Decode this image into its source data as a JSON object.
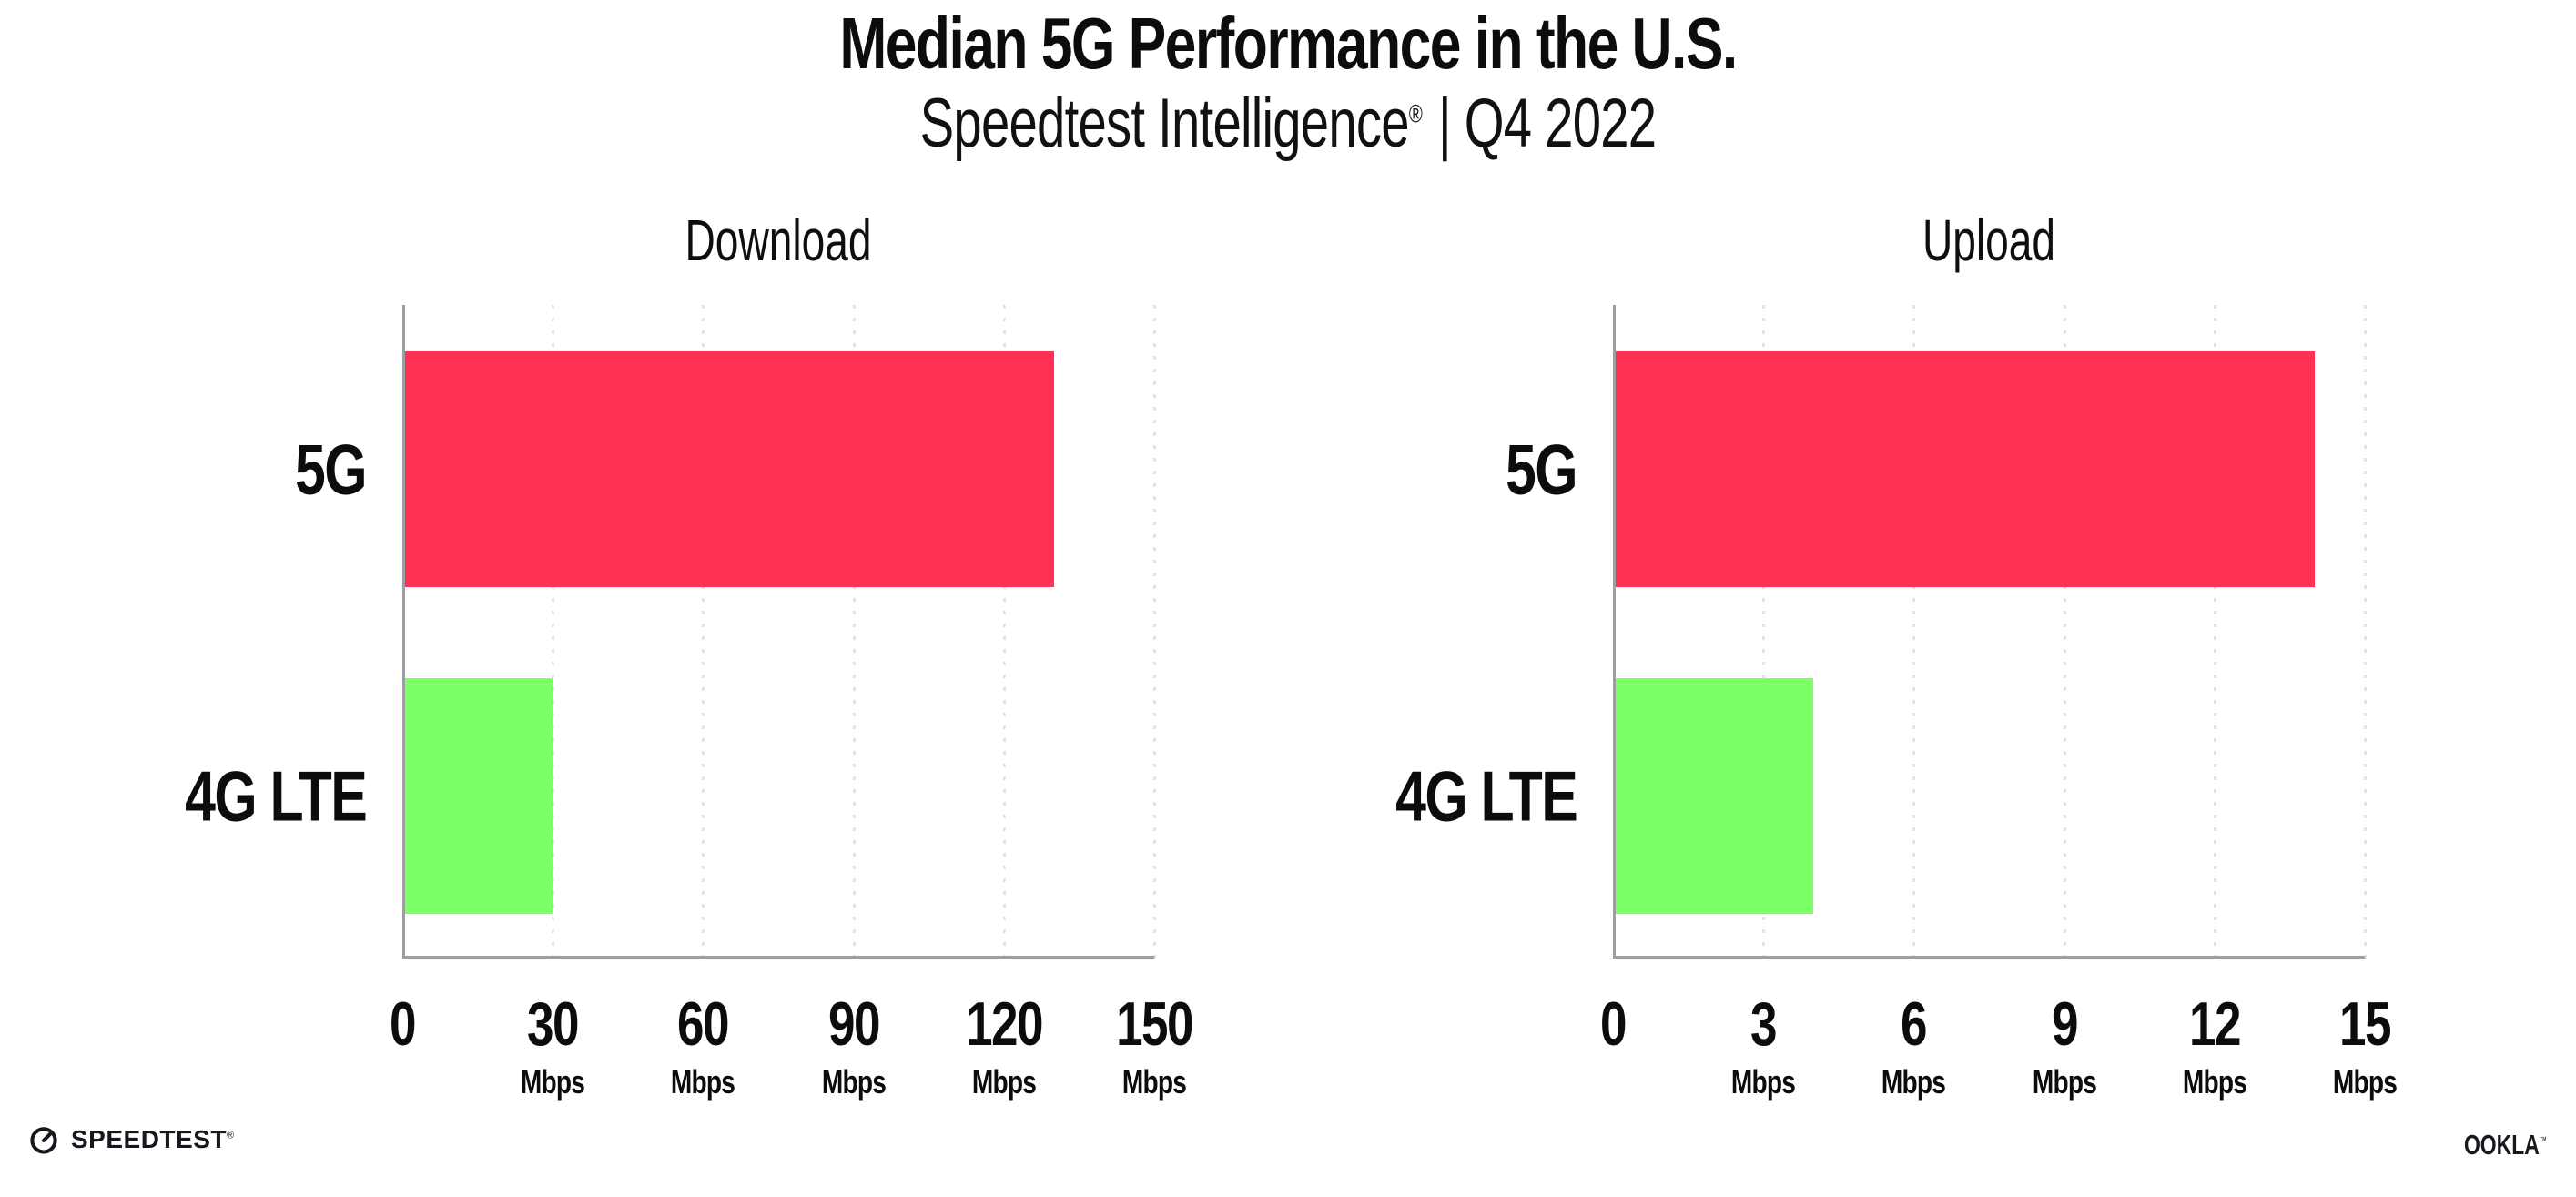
{
  "header": {
    "title": "Median 5G Performance in the U.S.",
    "subtitle_brand": "Speedtest Intelligence",
    "subtitle_reg": "®",
    "subtitle_rest": "| Q4 2022"
  },
  "chart_data": [
    {
      "type": "bar",
      "orientation": "horizontal",
      "title": "Download",
      "categories": [
        "5G",
        "4G LTE"
      ],
      "values": [
        130,
        30
      ],
      "unit": "Mbps",
      "xlim": [
        0,
        150
      ],
      "ticks": [
        0,
        30,
        60,
        90,
        120,
        150
      ],
      "bar_colors": [
        "#ff3155",
        "#7dff66"
      ],
      "grid": "dotted-vertical",
      "legend": "none"
    },
    {
      "type": "bar",
      "orientation": "horizontal",
      "title": "Upload",
      "categories": [
        "5G",
        "4G LTE"
      ],
      "values": [
        14,
        4
      ],
      "unit": "Mbps",
      "xlim": [
        0,
        15
      ],
      "ticks": [
        0,
        3,
        6,
        9,
        12,
        15
      ],
      "bar_colors": [
        "#ff3155",
        "#7dff66"
      ],
      "grid": "dotted-vertical",
      "legend": "none"
    }
  ],
  "footer": {
    "speedtest_label": "SPEEDTEST",
    "speedtest_mark": "®",
    "ookla_label": "OOKLA",
    "ookla_mark": "™"
  },
  "colors": {
    "bar_5g": "#ff3155",
    "bar_4g_lte": "#7dff66",
    "axis": "#9d9da4",
    "gridline": "#e2e2ec",
    "text": "#0c0c0c"
  }
}
